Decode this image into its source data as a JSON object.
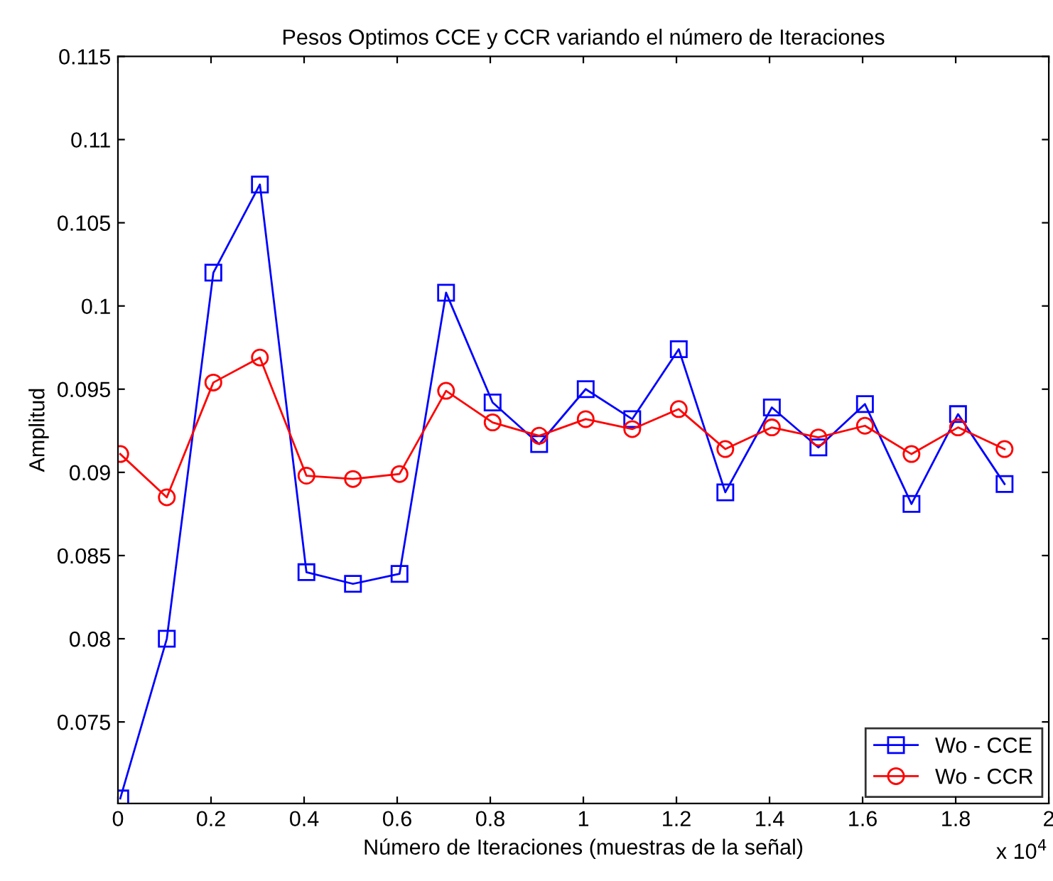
{
  "chart_data": {
    "type": "line",
    "title": "Pesos Optimos CCE y CCR variando el número de Iteraciones",
    "xlabel": "Número de Iteraciones (muestras de la señal)",
    "ylabel": "Amplitud",
    "x": [
      0.005,
      0.105,
      0.205,
      0.305,
      0.405,
      0.505,
      0.605,
      0.705,
      0.805,
      0.905,
      1.005,
      1.105,
      1.205,
      1.305,
      1.405,
      1.505,
      1.605,
      1.705,
      1.805,
      1.905
    ],
    "series": [
      {
        "name": "Wo - CCE",
        "color": "#0000ff",
        "marker": "square",
        "values": [
          0.0704,
          0.08,
          0.102,
          0.1073,
          0.084,
          0.0833,
          0.0839,
          0.1008,
          0.0942,
          0.0917,
          0.095,
          0.0932,
          0.0974,
          0.0888,
          0.0939,
          0.0915,
          0.0941,
          0.0881,
          0.0935,
          0.0893
        ]
      },
      {
        "name": "Wo - CCR",
        "color": "#ff0000",
        "marker": "circle",
        "values": [
          0.0911,
          0.0885,
          0.0954,
          0.0969,
          0.0898,
          0.0896,
          0.0899,
          0.0949,
          0.093,
          0.0922,
          0.0932,
          0.0926,
          0.0938,
          0.0914,
          0.0927,
          0.0921,
          0.0928,
          0.0911,
          0.0927,
          0.0914
        ]
      }
    ],
    "xlim": [
      0,
      2
    ],
    "xticks": [
      0,
      0.2,
      0.4,
      0.6,
      0.8,
      1,
      1.2,
      1.4,
      1.6,
      1.8,
      2
    ],
    "ylim": [
      0.0701,
      0.115
    ],
    "yticks": [
      0.075,
      0.08,
      0.085,
      0.09,
      0.095,
      0.1,
      0.105,
      0.11,
      0.115
    ],
    "annotations": [
      "x 10$^{4}$"
    ],
    "grid": false,
    "legend": "bottom right",
    "line_style": "solid"
  }
}
